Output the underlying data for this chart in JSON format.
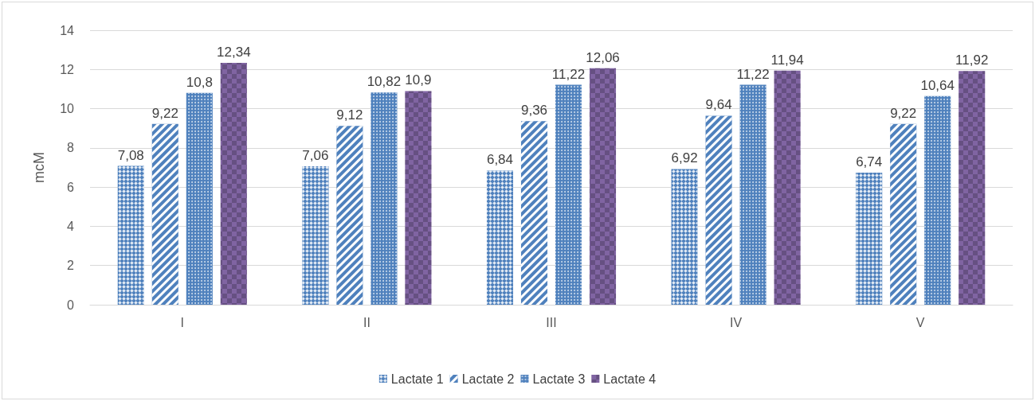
{
  "chart_data": {
    "type": "bar",
    "ylabel": "mcM",
    "categories": [
      "I",
      "II",
      "III",
      "IV",
      "V"
    ],
    "series": [
      {
        "name": "Lactate 1",
        "color": "#4f81bd",
        "values": [
          7.08,
          7.06,
          6.84,
          6.92,
          6.74
        ],
        "value_labels": [
          "7,08",
          "7,06",
          "6,84",
          "6,92",
          "6,74"
        ]
      },
      {
        "name": "Lactate 2",
        "color": "#4f81bd",
        "values": [
          9.22,
          9.12,
          9.36,
          9.64,
          9.22
        ],
        "value_labels": [
          "9,22",
          "9,12",
          "9,36",
          "9,64",
          "9,22"
        ]
      },
      {
        "name": "Lactate 3",
        "color": "#4f81bd",
        "values": [
          10.8,
          10.82,
          11.22,
          11.22,
          10.64
        ],
        "value_labels": [
          "10,8",
          "10,82",
          "11,22",
          "11,22",
          "10,64"
        ]
      },
      {
        "name": "Lactate 4",
        "color": "#8064a2",
        "values": [
          12.34,
          10.9,
          12.06,
          11.94,
          11.92
        ],
        "value_labels": [
          "12,34",
          "10,9",
          "12,06",
          "11,94",
          "11,92"
        ]
      }
    ],
    "ylim": [
      0,
      14
    ],
    "yticks": [
      0,
      2,
      4,
      6,
      8,
      10,
      12,
      14
    ],
    "grid": "y",
    "legend": "bottom"
  }
}
